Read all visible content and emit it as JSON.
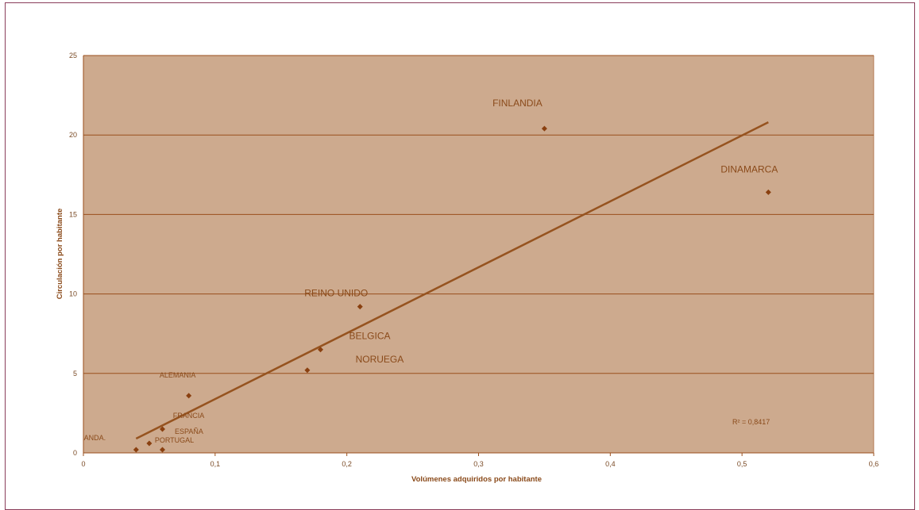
{
  "chart_data": {
    "type": "scatter",
    "xlabel": "Volúmenes adquiridos por habitante",
    "ylabel": "Circulación por habitante",
    "xlim": [
      0,
      0.6
    ],
    "ylim": [
      0,
      25
    ],
    "x_ticks": [
      "0",
      "0,1",
      "0,2",
      "0,3",
      "0,4",
      "0,5",
      "0,6"
    ],
    "y_ticks": [
      "0",
      "5",
      "10",
      "15",
      "20",
      "25"
    ],
    "grid": "horizontal",
    "colors": {
      "plot_background": "#cdaa8e",
      "gridline": "#9a4f1c",
      "marker": "#8a4010",
      "trendline": "#96531f"
    },
    "points": [
      {
        "label": "FINLANDIA",
        "x": 0.35,
        "y": 20.4
      },
      {
        "label": "DINAMARCA",
        "x": 0.52,
        "y": 16.4
      },
      {
        "label": "REINO UNIDO",
        "x": 0.21,
        "y": 9.2
      },
      {
        "label": "BELGICA",
        "x": 0.18,
        "y": 6.5
      },
      {
        "label": "NORUEGA",
        "x": 0.17,
        "y": 5.2
      },
      {
        "label": "ALEMANIA",
        "x": 0.08,
        "y": 3.6
      },
      {
        "label": "FRANCIA",
        "x": 0.06,
        "y": 1.5
      },
      {
        "label": "ESPAÑA",
        "x": 0.05,
        "y": 0.6
      },
      {
        "label": "PORTUGAL",
        "x": 0.06,
        "y": 0.2
      },
      {
        "label": "ANDA.",
        "x": 0.04,
        "y": 0.2
      }
    ],
    "trendline": {
      "x": [
        0.04,
        0.52
      ],
      "y": [
        0.9,
        20.8
      ]
    },
    "annotation": "R² = 0,8417"
  }
}
